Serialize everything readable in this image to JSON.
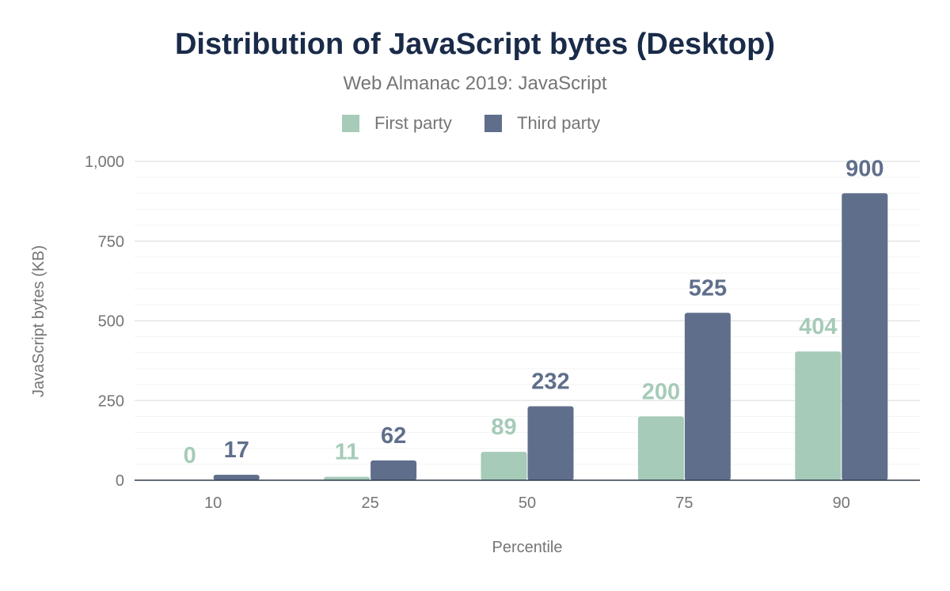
{
  "chart_data": {
    "type": "bar",
    "title": "Distribution of JavaScript bytes (Desktop)",
    "subtitle": "Web Almanac 2019: JavaScript",
    "xlabel": "Percentile",
    "ylabel": "JavaScript bytes (KB)",
    "categories": [
      "10",
      "25",
      "50",
      "75",
      "90"
    ],
    "ylim": [
      0,
      1000
    ],
    "yticks": [
      0,
      250,
      500,
      750,
      1000
    ],
    "ytick_labels": [
      "0",
      "250",
      "500",
      "750",
      "1,000"
    ],
    "minor_grid_step": 50,
    "grid": true,
    "legend_position": "top-center",
    "series": [
      {
        "name": "First party",
        "color": "#a6cbb8",
        "values": [
          0,
          11,
          89,
          200,
          404
        ]
      },
      {
        "name": "Third party",
        "color": "#5f6f8b",
        "values": [
          17,
          62,
          232,
          525,
          900
        ]
      }
    ]
  },
  "colors": {
    "title": "#1a2b49",
    "axis_text": "#757575",
    "axis_line": "#2f3a4a"
  }
}
